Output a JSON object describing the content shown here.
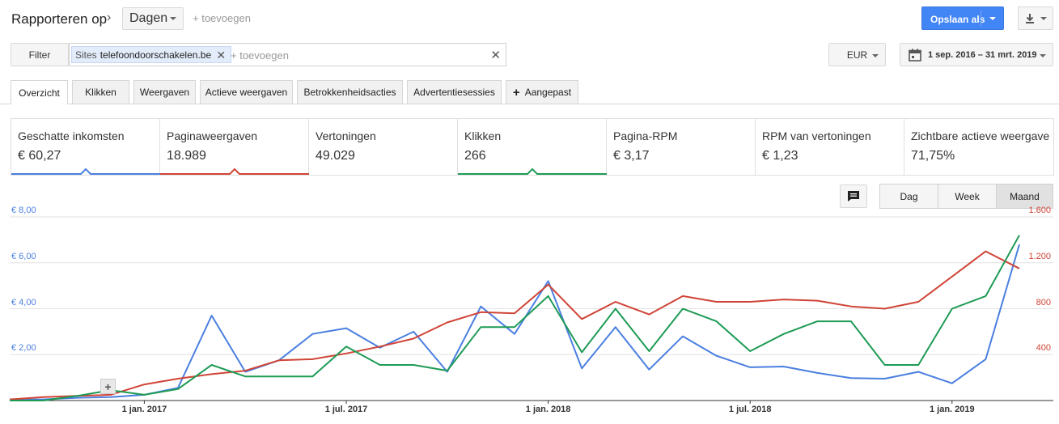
{
  "header": {
    "title": "Rapporteren op",
    "dimension": "Dagen",
    "add_label": "+ toevoegen",
    "save_label": "Opslaan als"
  },
  "filter": {
    "button": "Filter",
    "chip_prefix": "Sites",
    "chip_value": "telefoondoorschakelen.be",
    "add_placeholder": "+ toevoegen"
  },
  "currency": "EUR",
  "date_range": "1 sep. 2016 – 31 mrt. 2019",
  "tabs": [
    {
      "label": "Overzicht"
    },
    {
      "label": "Klikken"
    },
    {
      "label": "Weergaven"
    },
    {
      "label": "Actieve weergaven"
    },
    {
      "label": "Betrokkenheidsacties"
    },
    {
      "label": "Advertentiesessies"
    },
    {
      "label": "Aangepast"
    }
  ],
  "metrics": [
    {
      "label": "Geschatte inkomsten",
      "value": "€ 60,27",
      "color": "#4a7fe0"
    },
    {
      "label": "Paginaweergaven",
      "value": "18.989",
      "color": "#d04437"
    },
    {
      "label": "Vertoningen",
      "value": "49.029",
      "color": ""
    },
    {
      "label": "Klikken",
      "value": "266",
      "color": "#1e9b55"
    },
    {
      "label": "Pagina-RPM",
      "value": "€ 3,17",
      "color": ""
    },
    {
      "label": "RPM van vertoningen",
      "value": "€ 1,23",
      "color": ""
    },
    {
      "label": "Zichtbare actieve weergave",
      "value": "71,75%",
      "color": ""
    }
  ],
  "granularity": [
    {
      "label": "Dag"
    },
    {
      "label": "Week"
    },
    {
      "label": "Maand"
    }
  ],
  "colors": {
    "primary_button": "#4285f4",
    "revenue": "#4a7fe0",
    "pageviews": "#d04437",
    "clicks": "#1e9b55"
  },
  "chart_data": {
    "type": "line",
    "title": "",
    "xlabel": "",
    "ylabel": "",
    "grid": true,
    "x": [
      "2016-09",
      "2016-10",
      "2016-11",
      "2016-12",
      "2017-01",
      "2017-02",
      "2017-03",
      "2017-04",
      "2017-05",
      "2017-06",
      "2017-07",
      "2017-08",
      "2017-09",
      "2017-10",
      "2017-11",
      "2017-12",
      "2018-01",
      "2018-02",
      "2018-03",
      "2018-04",
      "2018-05",
      "2018-06",
      "2018-07",
      "2018-08",
      "2018-09",
      "2018-10",
      "2018-11",
      "2018-12",
      "2019-01",
      "2019-02",
      "2019-03"
    ],
    "x_ticks": [
      {
        "x": "2017-01",
        "label": "1 jan. 2017"
      },
      {
        "x": "2017-07",
        "label": "1 jul. 2017"
      },
      {
        "x": "2018-01",
        "label": "1 jan. 2018"
      },
      {
        "x": "2018-07",
        "label": "1 jul. 2018"
      },
      {
        "x": "2019-01",
        "label": "1 jan. 2019"
      }
    ],
    "y_left": {
      "min": 0,
      "max": 8,
      "ticks": [
        "€ 2,00",
        "€ 4,00",
        "€ 6,00",
        "€ 8,00"
      ],
      "tick_values": [
        2,
        4,
        6,
        8
      ]
    },
    "y_right": {
      "min": 0,
      "max": 1600,
      "ticks": [
        "400",
        "800",
        "1.200",
        "1.600"
      ],
      "tick_values": [
        400,
        800,
        1200,
        1600
      ]
    },
    "series": [
      {
        "key": "revenue",
        "axis": "left",
        "color": "#4a7fe0",
        "values": [
          0.05,
          0.05,
          0.12,
          0.15,
          0.25,
          0.55,
          3.7,
          1.25,
          1.75,
          2.9,
          3.15,
          2.3,
          3.0,
          1.25,
          4.1,
          2.9,
          5.2,
          1.4,
          3.2,
          1.35,
          2.8,
          1.95,
          1.45,
          1.48,
          1.2,
          0.98,
          0.95,
          1.25,
          0.75,
          1.8,
          6.8
        ]
      },
      {
        "key": "pageviews",
        "axis": "right",
        "color": "#d04437",
        "values": [
          10,
          30,
          40,
          50,
          140,
          190,
          230,
          260,
          350,
          360,
          410,
          470,
          540,
          680,
          770,
          760,
          1010,
          710,
          860,
          750,
          910,
          860,
          860,
          880,
          870,
          820,
          800,
          860,
          1080,
          1300,
          1150
        ]
      },
      {
        "key": "clicks",
        "axis": "left",
        "color": "#1e9b55",
        "values": [
          0.0,
          0.0,
          0.2,
          0.45,
          0.25,
          0.5,
          1.55,
          1.05,
          1.05,
          1.05,
          2.35,
          1.55,
          1.55,
          1.3,
          3.2,
          3.2,
          4.55,
          2.1,
          4.0,
          2.15,
          4.0,
          3.45,
          2.15,
          2.9,
          3.45,
          3.45,
          1.55,
          1.55,
          4.0,
          4.55,
          7.2
        ]
      }
    ]
  }
}
